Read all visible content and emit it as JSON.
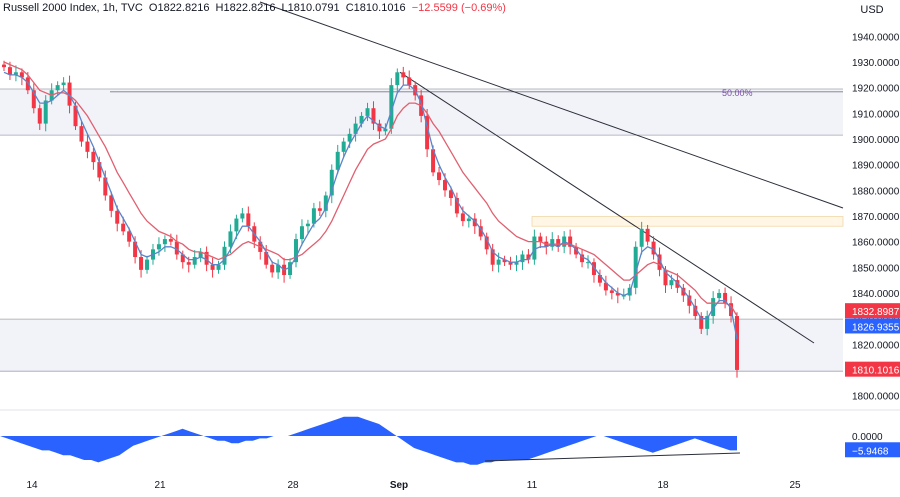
{
  "header": {
    "symbol": "Russell 2000 Index, 1h, TVC",
    "open_label": "O",
    "open": "1822.8216",
    "high_label": "H",
    "high": "1822.8216",
    "low_label": "L",
    "low": "1810.0791",
    "close_label": "C",
    "close": "1810.1016",
    "change": "−12.5599 (−0.69%)"
  },
  "currency": "USD",
  "colors": {
    "up": "#22ab94",
    "down": "#f23645",
    "ema_fast": "#5b85c9",
    "ema_slow": "#e06070",
    "zone_fill": "#f2f3f9",
    "zone_line": "#a0a4ad",
    "resistance_fill": "#fff6e6",
    "trendline": "#2a2e39",
    "oscillator": "#2962ff",
    "fib_label": "#7a4fa8"
  },
  "chart_data": {
    "type": "candlestick",
    "title": "Russell 2000 Index, 1h, TVC",
    "y_ticks": [
      "1940.0000",
      "1930.0000",
      "1920.0000",
      "1910.0000",
      "1900.0000",
      "1890.0000",
      "1880.0000",
      "1870.0000",
      "1860.0000",
      "1850.0000",
      "1840.0000",
      "1830.0000",
      "1820.0000",
      "1810.0000",
      "1800.0000"
    ],
    "ylim": [
      1797.5,
      1945.6
    ],
    "x_ticks": [
      "14",
      "21",
      "28",
      "Sep",
      "11",
      "18",
      "25"
    ],
    "price_tags": [
      {
        "label": "1832.8987",
        "value": 1832.9,
        "color": "#f23645"
      },
      {
        "label": "1826.9355",
        "value": 1826.94,
        "color": "#2962ff"
      },
      {
        "label": "1810.1016",
        "value": 1810.1,
        "color": "#f23645"
      }
    ],
    "fib_label": "50.00%",
    "fib_level": 1918.4,
    "zones": [
      {
        "name": "upper-zone",
        "from": 1901.5,
        "to": 1919.5
      },
      {
        "name": "lower-zone",
        "from": 1809.5,
        "to": 1829.8
      },
      {
        "name": "resistance-zone",
        "from": 1866.0,
        "to": 1869.8
      }
    ],
    "closes": [
      1928,
      1925,
      1926,
      1924,
      1919,
      1912,
      1906,
      1915,
      1919,
      1921,
      1922,
      1913,
      1905,
      1899,
      1895,
      1891,
      1885,
      1878,
      1872,
      1867,
      1864,
      1860,
      1854,
      1849,
      1853,
      1857,
      1859,
      1861,
      1860,
      1855,
      1852,
      1851,
      1854,
      1856,
      1851,
      1849,
      1851,
      1858,
      1864,
      1869,
      1871,
      1866,
      1860,
      1856,
      1851,
      1848,
      1851,
      1847,
      1852,
      1861,
      1866,
      1867,
      1873,
      1872,
      1878,
      1888,
      1895,
      1899,
      1902,
      1906,
      1909,
      1912,
      1906,
      1903,
      1904,
      1921,
      1926,
      1924,
      1921,
      1917,
      1909,
      1896,
      1887,
      1884,
      1880,
      1877,
      1871,
      1868,
      1869,
      1866,
      1862,
      1857,
      1851,
      1853,
      1852,
      1851,
      1852,
      1855,
      1853,
      1862,
      1860,
      1858,
      1861,
      1858,
      1862,
      1858,
      1855,
      1852,
      1852,
      1847,
      1844,
      1841,
      1840,
      1839,
      1839,
      1842,
      1858,
      1865,
      1860,
      1855,
      1849,
      1843,
      1845,
      1842,
      1839,
      1835,
      1831,
      1826,
      1831,
      1838,
      1840,
      1836,
      1831,
      1810
    ],
    "ema_fast": [
      1926,
      1925,
      1925,
      1924,
      1922,
      1918,
      1914,
      1914,
      1915,
      1917,
      1919,
      1917,
      1913,
      1907,
      1902,
      1897,
      1891,
      1885,
      1879,
      1873,
      1869,
      1865,
      1860,
      1855,
      1854,
      1855,
      1856,
      1858,
      1858,
      1857,
      1855,
      1853,
      1853,
      1854,
      1853,
      1851,
      1851,
      1853,
      1857,
      1862,
      1866,
      1866,
      1863,
      1860,
      1856,
      1852,
      1851,
      1849,
      1850,
      1854,
      1859,
      1863,
      1867,
      1869,
      1873,
      1880,
      1887,
      1893,
      1898,
      1902,
      1906,
      1909,
      1907,
      1905,
      1904,
      1911,
      1918,
      1921,
      1921,
      1919,
      1914,
      1905,
      1896,
      1890,
      1885,
      1881,
      1876,
      1872,
      1870,
      1868,
      1865,
      1861,
      1856,
      1854,
      1853,
      1852,
      1852,
      1853,
      1853,
      1857,
      1858,
      1858,
      1859,
      1858,
      1860,
      1859,
      1857,
      1854,
      1853,
      1850,
      1847,
      1844,
      1842,
      1840,
      1839,
      1840,
      1848,
      1856,
      1858,
      1857,
      1853,
      1848,
      1846,
      1844,
      1841,
      1838,
      1834,
      1830,
      1830,
      1834,
      1837,
      1837,
      1834,
      1822
    ],
    "ema_slow": [
      1930,
      1929,
      1928,
      1927,
      1925,
      1922,
      1919,
      1918,
      1917,
      1918,
      1918,
      1917,
      1915,
      1912,
      1909,
      1905,
      1901,
      1897,
      1892,
      1887,
      1883,
      1879,
      1875,
      1871,
      1868,
      1866,
      1864,
      1863,
      1862,
      1860,
      1859,
      1857,
      1856,
      1856,
      1855,
      1854,
      1853,
      1854,
      1855,
      1857,
      1859,
      1860,
      1859,
      1858,
      1857,
      1856,
      1855,
      1853,
      1853,
      1854,
      1855,
      1857,
      1859,
      1861,
      1864,
      1868,
      1873,
      1878,
      1883,
      1888,
      1892,
      1896,
      1898,
      1899,
      1900,
      1904,
      1909,
      1912,
      1914,
      1914,
      1913,
      1910,
      1906,
      1903,
      1899,
      1895,
      1891,
      1887,
      1884,
      1881,
      1878,
      1875,
      1871,
      1868,
      1866,
      1864,
      1862,
      1861,
      1860,
      1860,
      1860,
      1859,
      1859,
      1859,
      1859,
      1859,
      1858,
      1857,
      1856,
      1855,
      1853,
      1851,
      1849,
      1847,
      1845,
      1845,
      1847,
      1849,
      1851,
      1852,
      1851,
      1849,
      1848,
      1847,
      1845,
      1843,
      1841,
      1838,
      1836,
      1836,
      1836,
      1836,
      1835,
      1831
    ],
    "oscillator": {
      "ticks": [
        "0.0000"
      ],
      "last_label": "−5.9468",
      "last_value": -5.9468,
      "values": [
        0,
        -1,
        -2,
        -3,
        -4,
        -5,
        -6,
        -6,
        -7,
        -8,
        -8,
        -9,
        -10,
        -10,
        -11,
        -10,
        -9,
        -8,
        -6,
        -4,
        -3,
        -2,
        -1,
        0,
        1,
        2,
        3,
        2,
        1,
        0,
        -1,
        -2,
        -2,
        -3,
        -3,
        -2,
        -2,
        -1,
        -1,
        0,
        0,
        0,
        1,
        2,
        3,
        4,
        5,
        6,
        7,
        8,
        8,
        8,
        7,
        6,
        5,
        3,
        1,
        -1,
        -3,
        -5,
        -6,
        -7,
        -8,
        -9,
        -10,
        -11,
        -11,
        -12,
        -12,
        -11,
        -11,
        -10,
        -10,
        -10,
        -10,
        -10,
        -9,
        -8,
        -7,
        -6,
        -5,
        -4,
        -3,
        -2,
        -1,
        0,
        0,
        -1,
        -2,
        -3,
        -4,
        -5,
        -6,
        -7,
        -6,
        -5,
        -4,
        -3,
        -2,
        -1,
        -2,
        -3,
        -4,
        -5,
        -6,
        -6
      ]
    }
  }
}
